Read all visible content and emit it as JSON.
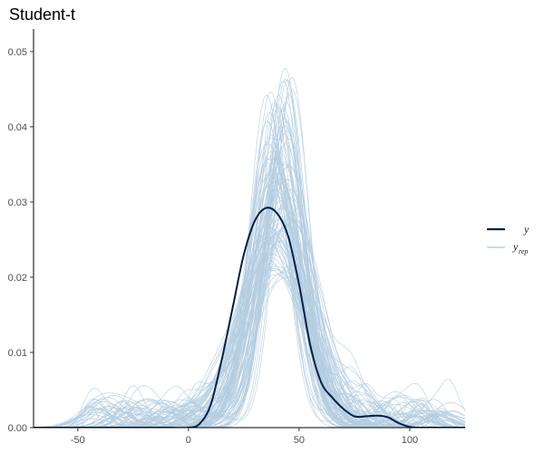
{
  "chart_data": {
    "type": "line",
    "title": "Student-t",
    "xlabel": "",
    "ylabel": "",
    "xlim": [
      -70,
      125
    ],
    "ylim": [
      0,
      0.053
    ],
    "x_ticks": [
      -50,
      0,
      50,
      100
    ],
    "y_ticks": [
      0.0,
      0.01,
      0.02,
      0.03,
      0.04,
      0.05
    ],
    "x_tick_labels": [
      "-50",
      "0",
      "50",
      "100"
    ],
    "y_tick_labels": [
      "0.00",
      "0.01",
      "0.02",
      "0.03",
      "0.04",
      "0.05"
    ],
    "grid": false,
    "legend_position": "right",
    "legend": [
      {
        "label": "y",
        "subscript": "",
        "color": "#011f4b"
      },
      {
        "label": "y",
        "subscript": "rep",
        "color": "#b3cde0"
      }
    ],
    "series": [
      {
        "name": "y",
        "color": "#011f4b",
        "x": [
          -70,
          -50,
          -30,
          -10,
          0,
          5,
          10,
          15,
          20,
          25,
          30,
          35,
          40,
          45,
          50,
          55,
          60,
          65,
          70,
          75,
          80,
          85,
          90,
          95,
          100,
          105,
          125
        ],
        "y": [
          0.0,
          0.0,
          0.0,
          0.0,
          0.0,
          0.0005,
          0.003,
          0.009,
          0.016,
          0.023,
          0.0275,
          0.0292,
          0.0285,
          0.0255,
          0.019,
          0.011,
          0.006,
          0.004,
          0.0025,
          0.0015,
          0.0015,
          0.0016,
          0.0014,
          0.0006,
          0.0001,
          0.0,
          0.0
        ]
      }
    ],
    "replicate_draws": {
      "name": "y_rep",
      "color": "#b3cde0",
      "count": 100,
      "peak_x_range": [
        35,
        47
      ],
      "peak_density_range": [
        0.022,
        0.053
      ]
    }
  }
}
